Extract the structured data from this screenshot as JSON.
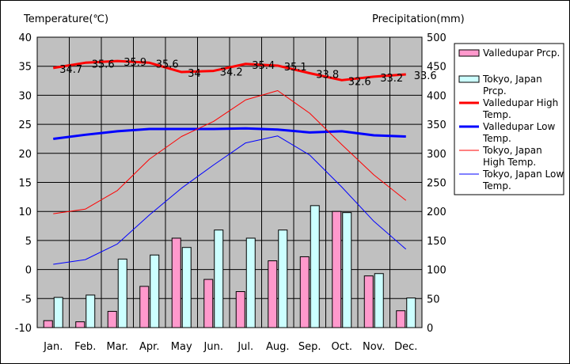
{
  "chart_data": {
    "type": "bar+line",
    "left_axis_title": "Temperature(℃)",
    "right_axis_title": "Precipitation(mm)",
    "categories": [
      "Jan.",
      "Feb.",
      "Mar.",
      "Apr.",
      "May",
      "Jun.",
      "Jul.",
      "Aug.",
      "Sep.",
      "Oct.",
      "Nov.",
      "Dec."
    ],
    "y_left": {
      "min": -10,
      "max": 40,
      "step": 5,
      "ticks": [
        "40",
        "35",
        "30",
        "25",
        "20",
        "15",
        "10",
        "5",
        "0",
        "-5",
        "-10"
      ]
    },
    "y_right": {
      "min": 0,
      "max": 500,
      "step": 50,
      "ticks": [
        "500",
        "450",
        "400",
        "350",
        "300",
        "250",
        "200",
        "150",
        "100",
        "50",
        "0"
      ]
    },
    "grid": true,
    "plot_background": "#c0c0c0",
    "legend_position": "right",
    "bar_series": [
      {
        "name": "Valledupar Prcp.",
        "color": "#ff99cc",
        "values": [
          12,
          10,
          28,
          71,
          154,
          83,
          62,
          115,
          122,
          200,
          89,
          29
        ]
      },
      {
        "name": "Tokyo, Japan Prcp.",
        "color": "#ccffff",
        "values": [
          52,
          56,
          118,
          125,
          138,
          168,
          154,
          168,
          210,
          198,
          93,
          51
        ]
      }
    ],
    "line_series": [
      {
        "name": "Valledupar High Temp.",
        "color": "#ff0000",
        "width": "thick",
        "values": [
          34.7,
          35.6,
          35.9,
          35.6,
          34,
          34.2,
          35.4,
          35.1,
          33.8,
          32.6,
          33.2,
          33.6
        ],
        "labels": [
          "34.7",
          "35.6",
          "35.9",
          "35.6",
          "34",
          "34.2",
          "35.4",
          "35.1",
          "33.8",
          "32.6",
          "33.2",
          "33.6"
        ]
      },
      {
        "name": "Valledupar Low Temp.",
        "color": "#0000ff",
        "width": "thick",
        "values": [
          22.5,
          23.2,
          23.8,
          24.2,
          24.2,
          24.2,
          24.3,
          24.1,
          23.6,
          23.8,
          23.1,
          22.9
        ]
      },
      {
        "name": "Tokyo, Japan High Temp.",
        "color": "#ff0000",
        "width": "thin",
        "values": [
          9.6,
          10.4,
          13.6,
          19.0,
          22.9,
          25.5,
          29.2,
          30.8,
          26.9,
          21.5,
          16.3,
          11.9
        ]
      },
      {
        "name": "Tokyo, Japan Low Temp.",
        "color": "#0000ff",
        "width": "thin",
        "values": [
          0.9,
          1.7,
          4.4,
          9.4,
          14.0,
          18.0,
          21.8,
          23.0,
          19.7,
          14.2,
          8.3,
          3.5
        ]
      }
    ]
  }
}
